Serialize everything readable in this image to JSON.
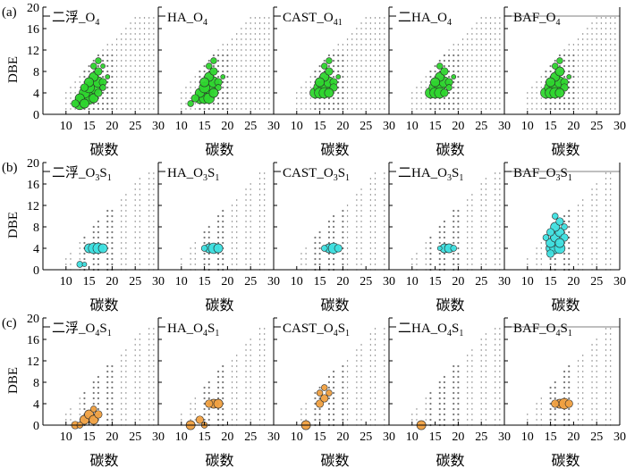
{
  "figure": {
    "rows": [
      {
        "label": "(a)",
        "ylabel": "DBE",
        "xlabel": "碳数"
      },
      {
        "label": "(b)",
        "ylabel": "DBE",
        "xlabel": "碳数"
      },
      {
        "label": "(c)",
        "ylabel": "DBE",
        "xlabel": "碳数"
      }
    ]
  },
  "colors": {
    "row_a_bubble": "#2ed62e",
    "row_b_bubble": "#3ee0e0",
    "row_c_bubble": "#f0a040",
    "grid_dot": "#555555",
    "axis": "#000000"
  },
  "chart_data": [
    {
      "type": "scatter",
      "row": "a",
      "title": "二浮_O4",
      "xlim": [
        5,
        30
      ],
      "ylim": [
        0,
        20
      ],
      "xticks": [
        10,
        15,
        20,
        25,
        30
      ],
      "yticks": [
        0,
        4,
        8,
        12,
        16,
        20
      ],
      "series": [
        {
          "values": [
            [
              13,
              2,
              8
            ],
            [
              14,
              3,
              9
            ],
            [
              15,
              4,
              9
            ],
            [
              16,
              5,
              8
            ],
            [
              17,
              6,
              7
            ],
            [
              16,
              7,
              6
            ],
            [
              17,
              8,
              5
            ],
            [
              15,
              3,
              8
            ],
            [
              14,
              4,
              7
            ],
            [
              13,
              3,
              6
            ],
            [
              15,
              5,
              7
            ],
            [
              16,
              3,
              6
            ],
            [
              18,
              6,
              5
            ],
            [
              18,
              5,
              4
            ],
            [
              12,
              2,
              5
            ],
            [
              14,
              2,
              6
            ],
            [
              17,
              4,
              5
            ],
            [
              16,
              9,
              4
            ],
            [
              17,
              10,
              4
            ],
            [
              18,
              9,
              3
            ],
            [
              15,
              6,
              6
            ],
            [
              19,
              7,
              3
            ],
            [
              14,
              5,
              5
            ]
          ]
        }
      ]
    },
    {
      "type": "scatter",
      "row": "a",
      "title": "HA_O4",
      "xlim": [
        5,
        30
      ],
      "ylim": [
        0,
        20
      ],
      "xticks": [
        10,
        15,
        20,
        25,
        30
      ],
      "yticks": [
        0,
        4,
        8,
        12,
        16,
        20
      ],
      "series": [
        {
          "values": [
            [
              14,
              3,
              7
            ],
            [
              15,
              4,
              9
            ],
            [
              16,
              5,
              8
            ],
            [
              17,
              6,
              7
            ],
            [
              16,
              7,
              6
            ],
            [
              17,
              8,
              5
            ],
            [
              15,
              3,
              7
            ],
            [
              14,
              4,
              6
            ],
            [
              16,
              3,
              7
            ],
            [
              18,
              6,
              5
            ],
            [
              18,
              5,
              4
            ],
            [
              13,
              3,
              5
            ],
            [
              17,
              4,
              6
            ],
            [
              16,
              9,
              4
            ],
            [
              17,
              10,
              4
            ],
            [
              15,
              5,
              7
            ],
            [
              15,
              6,
              6
            ],
            [
              19,
              7,
              3
            ],
            [
              12,
              2,
              4
            ]
          ]
        }
      ]
    },
    {
      "type": "scatter",
      "row": "a",
      "title": "CAST_O41",
      "xlim": [
        5,
        30
      ],
      "ylim": [
        0,
        20
      ],
      "xticks": [
        10,
        15,
        20,
        25,
        30
      ],
      "yticks": [
        0,
        4,
        8,
        12,
        16,
        20
      ],
      "series": [
        {
          "values": [
            [
              14,
              4,
              7
            ],
            [
              15,
              5,
              8
            ],
            [
              16,
              5,
              8
            ],
            [
              17,
              6,
              7
            ],
            [
              16,
              7,
              6
            ],
            [
              17,
              8,
              5
            ],
            [
              15,
              4,
              7
            ],
            [
              16,
              4,
              7
            ],
            [
              18,
              6,
              5
            ],
            [
              18,
              5,
              5
            ],
            [
              17,
              4,
              6
            ],
            [
              16,
              9,
              4
            ],
            [
              17,
              10,
              4
            ],
            [
              19,
              7,
              3
            ],
            [
              15,
              6,
              6
            ]
          ]
        }
      ]
    },
    {
      "type": "scatter",
      "row": "a",
      "title": "二HA_O4",
      "xlim": [
        5,
        30
      ],
      "ylim": [
        0,
        20
      ],
      "xticks": [
        10,
        15,
        20,
        25,
        30
      ],
      "yticks": [
        0,
        4,
        8,
        12,
        16,
        20
      ],
      "series": [
        {
          "values": [
            [
              14,
              4,
              7
            ],
            [
              15,
              5,
              8
            ],
            [
              16,
              5,
              7
            ],
            [
              17,
              6,
              7
            ],
            [
              16,
              7,
              6
            ],
            [
              17,
              8,
              5
            ],
            [
              15,
              4,
              7
            ],
            [
              16,
              4,
              7
            ],
            [
              18,
              6,
              5
            ],
            [
              18,
              5,
              4
            ],
            [
              17,
              4,
              5
            ],
            [
              16,
              9,
              4
            ],
            [
              19,
              7,
              3
            ],
            [
              15,
              6,
              6
            ]
          ]
        }
      ]
    },
    {
      "type": "scatter",
      "row": "a",
      "title": "BAF_O4",
      "xlim": [
        5,
        30
      ],
      "ylim": [
        0,
        20
      ],
      "xticks": [
        10,
        15,
        20,
        25,
        30
      ],
      "yticks": [
        0,
        4,
        8,
        12,
        16,
        20
      ],
      "series": [
        {
          "values": [
            [
              14,
              4,
              7
            ],
            [
              15,
              5,
              8
            ],
            [
              16,
              5,
              8
            ],
            [
              17,
              6,
              7
            ],
            [
              16,
              7,
              6
            ],
            [
              17,
              8,
              6
            ],
            [
              15,
              4,
              7
            ],
            [
              16,
              4,
              7
            ],
            [
              18,
              6,
              5
            ],
            [
              18,
              5,
              5
            ],
            [
              17,
              4,
              6
            ],
            [
              16,
              9,
              4
            ],
            [
              17,
              10,
              4
            ],
            [
              19,
              7,
              3
            ],
            [
              15,
              6,
              6
            ]
          ]
        }
      ]
    },
    {
      "type": "scatter",
      "row": "b",
      "title": "二浮_O3S1",
      "xlim": [
        5,
        30
      ],
      "ylim": [
        0,
        20
      ],
      "xticks": [
        10,
        15,
        20,
        25,
        30
      ],
      "yticks": [
        0,
        4,
        8,
        12,
        16,
        20
      ],
      "series": [
        {
          "values": [
            [
              15,
              4,
              6
            ],
            [
              16,
              4,
              7
            ],
            [
              17,
              4,
              7
            ],
            [
              18,
              4,
              6
            ],
            [
              13,
              1,
              4
            ],
            [
              14,
              1,
              3
            ]
          ]
        }
      ]
    },
    {
      "type": "scatter",
      "row": "b",
      "title": "HA_O3S1",
      "xlim": [
        5,
        30
      ],
      "ylim": [
        0,
        20
      ],
      "xticks": [
        10,
        15,
        20,
        25,
        30
      ],
      "yticks": [
        0,
        4,
        8,
        12,
        16,
        20
      ],
      "series": [
        {
          "values": [
            [
              16,
              4,
              6
            ],
            [
              17,
              4,
              7
            ],
            [
              18,
              4,
              6
            ],
            [
              15,
              4,
              4
            ]
          ]
        }
      ]
    },
    {
      "type": "scatter",
      "row": "b",
      "title": "CAST_O3S1",
      "xlim": [
        5,
        30
      ],
      "ylim": [
        0,
        20
      ],
      "xticks": [
        10,
        15,
        20,
        25,
        30
      ],
      "yticks": [
        0,
        4,
        8,
        12,
        16,
        20
      ],
      "series": [
        {
          "values": [
            [
              17,
              4,
              6
            ],
            [
              18,
              4,
              7
            ],
            [
              19,
              4,
              5
            ],
            [
              16,
              4,
              4
            ]
          ]
        }
      ]
    },
    {
      "type": "scatter",
      "row": "b",
      "title": "二HA_O3S1",
      "xlim": [
        5,
        30
      ],
      "ylim": [
        0,
        20
      ],
      "xticks": [
        10,
        15,
        20,
        25,
        30
      ],
      "yticks": [
        0,
        4,
        8,
        12,
        16,
        20
      ],
      "series": [
        {
          "values": [
            [
              17,
              4,
              6
            ],
            [
              18,
              4,
              6
            ],
            [
              19,
              4,
              4
            ],
            [
              16,
              4,
              3
            ]
          ]
        }
      ]
    },
    {
      "type": "scatter",
      "row": "b",
      "title": "BAF_O3S1",
      "xlim": [
        5,
        30
      ],
      "ylim": [
        0,
        20
      ],
      "xticks": [
        10,
        15,
        20,
        25,
        30
      ],
      "yticks": [
        0,
        4,
        8,
        12,
        16,
        20
      ],
      "series": [
        {
          "values": [
            [
              15,
              4,
              6
            ],
            [
              16,
              4,
              7
            ],
            [
              17,
              4,
              7
            ],
            [
              15,
              5,
              6
            ],
            [
              16,
              6,
              6
            ],
            [
              17,
              7,
              6
            ],
            [
              16,
              8,
              6
            ],
            [
              17,
              9,
              5
            ],
            [
              15,
              7,
              5
            ],
            [
              18,
              6,
              5
            ],
            [
              16,
              10,
              4
            ],
            [
              14,
              6,
              4
            ],
            [
              15,
              3,
              5
            ],
            [
              17,
              5,
              6
            ],
            [
              18,
              8,
              4
            ]
          ]
        }
      ]
    },
    {
      "type": "scatter",
      "row": "c",
      "title": "二浮_O4S1",
      "xlim": [
        5,
        30
      ],
      "ylim": [
        0,
        20
      ],
      "xticks": [
        10,
        15,
        20,
        25,
        30
      ],
      "yticks": [
        0,
        4,
        8,
        12,
        16,
        20
      ],
      "series": [
        {
          "values": [
            [
              12,
              0,
              5
            ],
            [
              14,
              1,
              6
            ],
            [
              15,
              2,
              6
            ],
            [
              16,
              1,
              6
            ],
            [
              17,
              2,
              5
            ],
            [
              13,
              0,
              4
            ],
            [
              16,
              3,
              4
            ]
          ]
        }
      ]
    },
    {
      "type": "scatter",
      "row": "c",
      "title": "HA_O4S1",
      "xlim": [
        5,
        30
      ],
      "ylim": [
        0,
        20
      ],
      "xticks": [
        10,
        15,
        20,
        25,
        30
      ],
      "yticks": [
        0,
        4,
        8,
        12,
        16,
        20
      ],
      "series": [
        {
          "values": [
            [
              12,
              0,
              6
            ],
            [
              14,
              1,
              5
            ],
            [
              17,
              4,
              6
            ],
            [
              18,
              4,
              6
            ],
            [
              16,
              4,
              5
            ],
            [
              15,
              0,
              4
            ]
          ]
        }
      ]
    },
    {
      "type": "scatter",
      "row": "c",
      "title": "CAST_O4S1",
      "xlim": [
        5,
        30
      ],
      "ylim": [
        0,
        20
      ],
      "xticks": [
        10,
        15,
        20,
        25,
        30
      ],
      "yticks": [
        0,
        4,
        8,
        12,
        16,
        20
      ],
      "series": [
        {
          "values": [
            [
              12,
              0,
              6
            ],
            [
              15,
              4,
              5
            ],
            [
              16,
              5,
              5
            ],
            [
              17,
              6,
              4
            ],
            [
              16,
              7,
              4
            ],
            [
              15,
              6,
              4
            ]
          ]
        }
      ]
    },
    {
      "type": "scatter",
      "row": "c",
      "title": "二HA_O4S1",
      "xlim": [
        5,
        30
      ],
      "ylim": [
        0,
        20
      ],
      "xticks": [
        10,
        15,
        20,
        25,
        30
      ],
      "yticks": [
        0,
        4,
        8,
        12,
        16,
        20
      ],
      "series": [
        {
          "values": [
            [
              12,
              0,
              6
            ]
          ]
        }
      ]
    },
    {
      "type": "scatter",
      "row": "c",
      "title": "BAF_O4S1",
      "xlim": [
        5,
        30
      ],
      "ylim": [
        0,
        20
      ],
      "xticks": [
        10,
        15,
        20,
        25,
        30
      ],
      "yticks": [
        0,
        4,
        8,
        12,
        16,
        20
      ],
      "series": [
        {
          "values": [
            [
              17,
              4,
              6
            ],
            [
              18,
              4,
              7
            ],
            [
              19,
              4,
              5
            ],
            [
              16,
              4,
              5
            ]
          ]
        }
      ]
    }
  ]
}
